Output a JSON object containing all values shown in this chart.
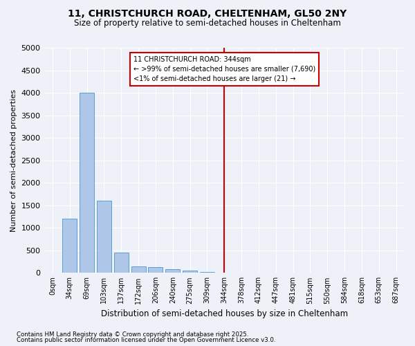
{
  "title1": "11, CHRISTCHURCH ROAD, CHELTENHAM, GL50 2NY",
  "title2": "Size of property relative to semi-detached houses in Cheltenham",
  "xlabel": "Distribution of semi-detached houses by size in Cheltenham",
  "ylabel": "Number of semi-detached properties",
  "bins": [
    "0sqm",
    "34sqm",
    "69sqm",
    "103sqm",
    "137sqm",
    "172sqm",
    "206sqm",
    "240sqm",
    "275sqm",
    "309sqm",
    "344sqm",
    "378sqm",
    "412sqm",
    "447sqm",
    "481sqm",
    "515sqm",
    "550sqm",
    "584sqm",
    "618sqm",
    "653sqm",
    "687sqm"
  ],
  "values": [
    0,
    1200,
    4000,
    1600,
    450,
    150,
    125,
    75,
    50,
    25,
    0,
    0,
    0,
    0,
    0,
    0,
    0,
    0,
    0,
    0,
    0
  ],
  "bar_color": "#aec6e8",
  "bar_edge_color": "#5a9fd4",
  "ylim": [
    0,
    5000
  ],
  "yticks": [
    0,
    500,
    1000,
    1500,
    2000,
    2500,
    3000,
    3500,
    4000,
    4500,
    5000
  ],
  "vline_x": 10.0,
  "vline_color": "#cc0000",
  "annotation_text": "11 CHRISTCHURCH ROAD: 344sqm\n← >99% of semi-detached houses are smaller (7,690)\n<1% of semi-detached houses are larger (21) →",
  "annotation_box_color": "#cc0000",
  "footer1": "Contains HM Land Registry data © Crown copyright and database right 2025.",
  "footer2": "Contains public sector information licensed under the Open Government Licence v3.0.",
  "bg_color": "#eef2f8",
  "grid_color": "#ffffff"
}
